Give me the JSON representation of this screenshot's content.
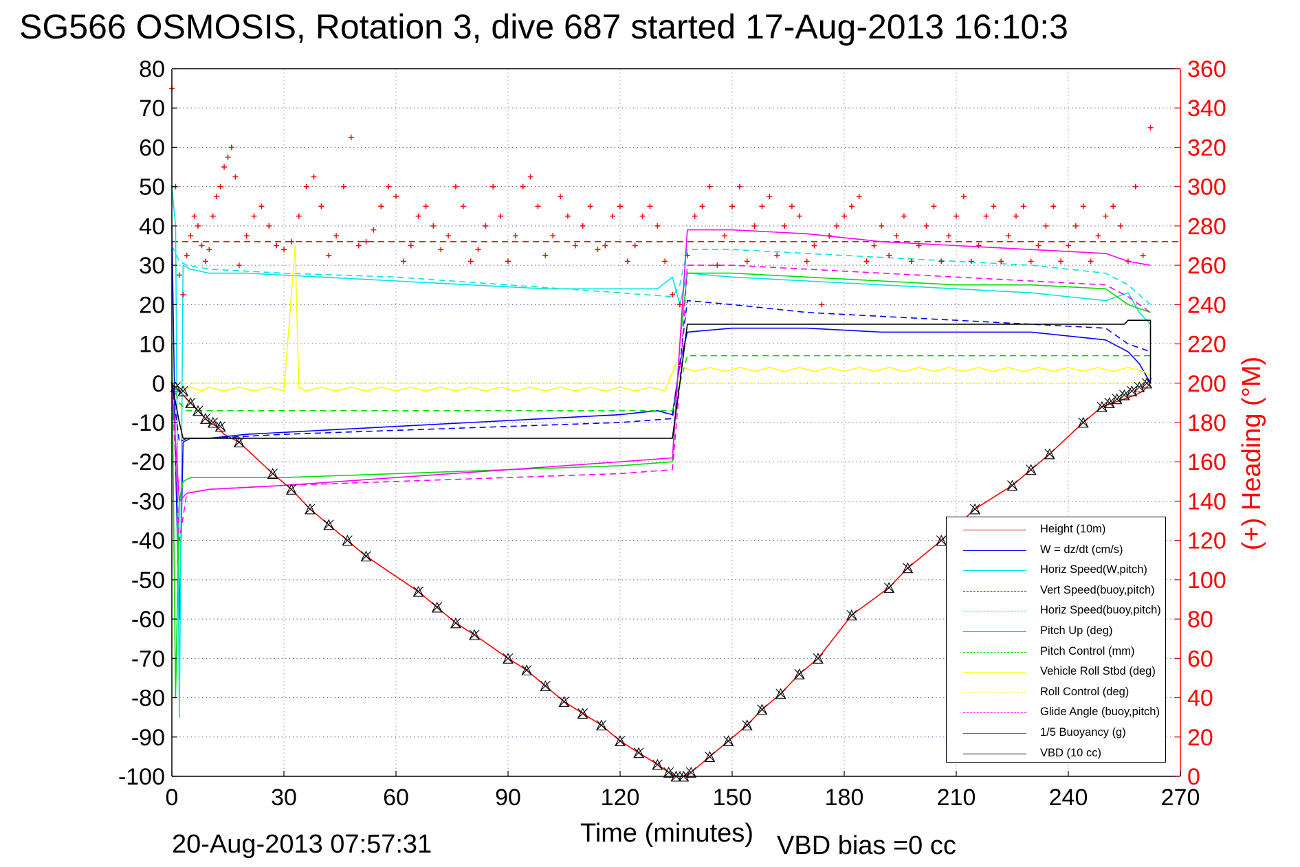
{
  "header": {
    "title": "SG566 OSMOSIS, Rotation 3, dive 687 started 17-Aug-2013 16:10:3"
  },
  "footer": {
    "timestamp": "20-Aug-2013 07:57:31",
    "vbd_bias": "VBD bias =0 cc"
  },
  "chart_data": {
    "type": "line",
    "xlabel": "Time (minutes)",
    "ylabel": "",
    "y2label": "(+) Heading (°M)",
    "xlim": [
      0,
      270
    ],
    "ylim": [
      -100,
      80
    ],
    "y2lim": [
      0,
      360
    ],
    "xticks": [
      0,
      30,
      60,
      90,
      120,
      150,
      180,
      210,
      240,
      270
    ],
    "yticks": [
      80,
      70,
      60,
      50,
      40,
      30,
      20,
      10,
      0,
      -10,
      -20,
      -30,
      -40,
      -50,
      -60,
      -70,
      -80,
      -90,
      -100
    ],
    "y2ticks": [
      360,
      340,
      320,
      300,
      280,
      260,
      240,
      220,
      200,
      180,
      160,
      140,
      120,
      100,
      80,
      60,
      40,
      20,
      0
    ],
    "grid": true,
    "legend_position": "bottom-right",
    "series": [
      {
        "name": "Height (10m)",
        "color": "#ff0000",
        "style": "solid",
        "x": [
          0,
          2,
          4,
          6,
          8,
          10,
          12,
          14,
          18,
          27,
          32,
          37,
          42,
          47,
          52,
          66,
          71,
          76,
          81,
          90,
          95,
          100,
          105,
          110,
          115,
          120,
          125,
          130,
          133,
          135,
          137,
          139,
          144,
          149,
          154,
          158,
          163,
          168,
          173,
          182,
          192,
          197,
          206,
          215,
          225,
          230,
          235,
          244,
          249,
          252,
          255,
          258,
          260,
          262
        ],
        "y": [
          -1,
          -2,
          -4,
          -6,
          -8,
          -10,
          -11,
          -13,
          -15,
          -23,
          -27,
          -32,
          -36,
          -40,
          -44,
          -53,
          -57,
          -61,
          -64,
          -70,
          -73,
          -77,
          -81,
          -84,
          -87,
          -91,
          -94,
          -97,
          -99,
          -100,
          -100,
          -99,
          -95,
          -91,
          -87,
          -83,
          -79,
          -74,
          -70,
          -59,
          -52,
          -47,
          -40,
          -32,
          -26,
          -22,
          -18,
          -10,
          -6,
          -5,
          -4,
          -3,
          -2,
          0
        ]
      },
      {
        "name": "W = dz/dt (cm/s)",
        "color": "#0000ff",
        "style": "solid",
        "x": [
          0,
          1,
          2,
          3,
          5,
          10,
          20,
          40,
          60,
          80,
          100,
          120,
          130,
          134,
          136,
          138,
          150,
          170,
          190,
          210,
          230,
          250,
          256,
          259,
          262
        ],
        "y": [
          40,
          -20,
          -60,
          -15,
          -14,
          -14,
          -13,
          -12,
          -11,
          -10,
          -9,
          -8,
          -7,
          -8,
          5,
          13,
          14,
          14,
          13,
          13,
          13,
          11,
          8,
          5,
          0
        ]
      },
      {
        "name": "Horiz Speed(W,pitch)",
        "color": "#00e5e5",
        "style": "solid",
        "x": [
          0,
          1,
          2,
          3,
          5,
          10,
          20,
          40,
          60,
          80,
          100,
          120,
          130,
          134,
          136,
          138,
          150,
          170,
          190,
          210,
          230,
          250,
          256,
          259,
          262
        ],
        "y": [
          50,
          40,
          -85,
          30,
          29,
          28,
          28,
          27,
          26,
          25,
          24,
          24,
          24,
          27,
          20,
          28,
          27,
          26,
          25,
          24,
          23,
          21,
          23,
          18,
          15
        ]
      },
      {
        "name": "Vert Speed(buoy,pitch)",
        "color": "#0000ff",
        "style": "dashed",
        "x": [
          0,
          2,
          4,
          10,
          30,
          60,
          90,
          120,
          134,
          136,
          138,
          150,
          170,
          190,
          210,
          230,
          250,
          256,
          262
        ],
        "y": [
          0,
          -15,
          -14,
          -14,
          -13,
          -12,
          -11,
          -10,
          -9,
          5,
          21,
          20,
          18,
          17,
          16,
          15,
          14,
          10,
          8
        ]
      },
      {
        "name": "Horiz Speed(buoy,pitch)",
        "color": "#00e5e5",
        "style": "dashed",
        "x": [
          0,
          2,
          4,
          10,
          30,
          60,
          90,
          120,
          134,
          136,
          138,
          150,
          170,
          190,
          210,
          230,
          250,
          256,
          262
        ],
        "y": [
          35,
          31,
          30,
          29,
          28,
          27,
          25,
          23,
          22,
          25,
          34,
          34,
          33,
          32,
          31,
          30,
          28,
          25,
          20
        ]
      },
      {
        "name": "Pitch Up (deg)",
        "color": "#00dd00",
        "style": "solid",
        "x": [
          0,
          1,
          2,
          3,
          5,
          10,
          30,
          60,
          90,
          120,
          134,
          136,
          138,
          150,
          170,
          190,
          210,
          230,
          250,
          256,
          262
        ],
        "y": [
          10,
          -80,
          -30,
          -25,
          -24,
          -24,
          -24,
          -23,
          -22,
          -21,
          -20,
          10,
          28,
          28,
          27,
          26,
          25,
          25,
          24,
          20,
          18
        ]
      },
      {
        "name": "Pitch Control (mm)",
        "color": "#00dd00",
        "style": "dashed",
        "x": [
          0,
          2,
          4,
          10,
          30,
          60,
          90,
          120,
          134,
          136,
          138,
          150,
          170,
          190,
          210,
          230,
          250,
          256,
          262
        ],
        "y": [
          0,
          -5,
          -7,
          -7,
          -7,
          -7,
          -7,
          -7,
          -7,
          0,
          7,
          7,
          7,
          7,
          7,
          7,
          7,
          7,
          7
        ]
      },
      {
        "name": "Vehicle Roll Stbd (deg)",
        "color": "#ffff00",
        "style": "solid",
        "x": [
          0,
          3,
          5,
          8,
          10,
          14,
          18,
          22,
          26,
          30,
          33,
          34,
          36,
          40,
          44,
          48,
          52,
          56,
          60,
          64,
          68,
          72,
          76,
          80,
          84,
          88,
          92,
          96,
          100,
          104,
          108,
          112,
          116,
          120,
          124,
          128,
          132,
          135,
          137,
          140,
          144,
          148,
          152,
          156,
          160,
          164,
          168,
          172,
          176,
          180,
          184,
          188,
          192,
          196,
          200,
          204,
          208,
          212,
          216,
          220,
          224,
          228,
          232,
          236,
          240,
          244,
          248,
          252,
          256,
          260,
          262
        ],
        "y": [
          0,
          -2,
          -1,
          -2,
          -1,
          -2,
          -1,
          -2,
          -1,
          -2,
          35,
          -1,
          -2,
          -1,
          -2,
          -1,
          -2,
          -1,
          -2,
          -1,
          -2,
          -1,
          -2,
          -1,
          -2,
          -1,
          -2,
          -1,
          -2,
          -1,
          -2,
          -1,
          -2,
          -1,
          -2,
          -1,
          -2,
          5,
          4,
          3,
          4,
          3,
          4,
          3,
          4,
          3,
          4,
          3,
          4,
          3,
          4,
          3,
          4,
          3,
          4,
          3,
          4,
          3,
          4,
          3,
          4,
          3,
          4,
          3,
          4,
          3,
          4,
          3,
          4,
          3,
          2
        ]
      },
      {
        "name": "Roll Control (deg)",
        "color": "#ffff00",
        "style": "dashed",
        "x": [
          0,
          10,
          30,
          60,
          90,
          120,
          134,
          136,
          150,
          180,
          210,
          240,
          262
        ],
        "y": [
          0,
          0,
          0,
          0,
          0,
          0,
          0,
          0,
          0,
          0,
          0,
          0,
          0
        ]
      },
      {
        "name": "Glide Angle (buoy,pitch)",
        "color": "#ff00ff",
        "style": "dashed",
        "x": [
          0,
          2,
          4,
          10,
          30,
          60,
          90,
          120,
          134,
          136,
          138,
          150,
          170,
          190,
          210,
          230,
          250,
          256,
          262
        ],
        "y": [
          0,
          -40,
          -28,
          -27,
          -26,
          -25,
          -24,
          -23,
          -22,
          0,
          30,
          30,
          29,
          28,
          27,
          26,
          25,
          22,
          18
        ]
      },
      {
        "name": "1/5 Buoyancy (g)",
        "color": "#ff00ff",
        "style": "solid",
        "x": [
          0,
          2,
          4,
          10,
          30,
          60,
          90,
          120,
          134,
          136,
          138,
          150,
          170,
          190,
          210,
          230,
          250,
          256,
          262
        ],
        "y": [
          0,
          -30,
          -28,
          -27,
          -26,
          -24,
          -22,
          -20,
          -19,
          10,
          39,
          39,
          38,
          36,
          35,
          34,
          33,
          31,
          30
        ]
      },
      {
        "name": "VBD (10 cc)",
        "color": "#000000",
        "style": "solid",
        "x": [
          0,
          1,
          2,
          3,
          5,
          134,
          136,
          138,
          255,
          256,
          262,
          262
        ],
        "y": [
          0,
          -5,
          -10,
          -14,
          -14,
          -14,
          0,
          15,
          15,
          16,
          16,
          0
        ]
      }
    ],
    "reference_lines": [
      {
        "axis": "y2",
        "value": 272,
        "color": "#ff0000",
        "style": "dashed"
      }
    ],
    "heading_series": {
      "axis": "y2",
      "color": "#ff0000",
      "marker": "+",
      "x": [
        0,
        1,
        2,
        3,
        4,
        5,
        6,
        7,
        8,
        9,
        10,
        11,
        12,
        13,
        14,
        15,
        16,
        17,
        18,
        20,
        22,
        24,
        26,
        28,
        30,
        32,
        34,
        36,
        38,
        40,
        42,
        44,
        46,
        48,
        50,
        52,
        54,
        56,
        58,
        60,
        62,
        64,
        66,
        68,
        70,
        72,
        74,
        76,
        78,
        80,
        82,
        84,
        86,
        88,
        90,
        92,
        94,
        96,
        98,
        100,
        102,
        104,
        106,
        108,
        110,
        112,
        114,
        116,
        118,
        120,
        122,
        124,
        126,
        128,
        130,
        132,
        134,
        136,
        138,
        140,
        142,
        144,
        146,
        148,
        150,
        152,
        154,
        156,
        158,
        160,
        162,
        164,
        166,
        168,
        170,
        172,
        174,
        176,
        178,
        180,
        182,
        184,
        186,
        188,
        190,
        192,
        194,
        196,
        198,
        200,
        202,
        204,
        206,
        208,
        210,
        212,
        214,
        216,
        218,
        220,
        222,
        224,
        226,
        228,
        230,
        232,
        234,
        236,
        238,
        240,
        242,
        244,
        246,
        248,
        250,
        252,
        254,
        256,
        258,
        260,
        262
      ],
      "y": [
        350,
        300,
        255,
        245,
        265,
        275,
        285,
        280,
        270,
        262,
        268,
        285,
        295,
        300,
        310,
        315,
        320,
        305,
        260,
        275,
        285,
        290,
        280,
        270,
        268,
        272,
        285,
        300,
        305,
        290,
        265,
        275,
        300,
        325,
        270,
        272,
        278,
        290,
        300,
        295,
        262,
        270,
        285,
        290,
        280,
        268,
        275,
        300,
        290,
        262,
        268,
        280,
        300,
        285,
        262,
        275,
        300,
        305,
        290,
        265,
        275,
        295,
        285,
        270,
        280,
        290,
        268,
        270,
        285,
        290,
        262,
        270,
        285,
        290,
        280,
        262,
        245,
        240,
        265,
        285,
        290,
        300,
        260,
        275,
        290,
        300,
        262,
        280,
        290,
        295,
        265,
        280,
        290,
        285,
        262,
        270,
        240,
        275,
        280,
        285,
        290,
        295,
        262,
        270,
        280,
        265,
        275,
        285,
        262,
        270,
        280,
        290,
        262,
        275,
        285,
        295,
        262,
        270,
        285,
        290,
        262,
        275,
        285,
        290,
        262,
        270,
        280,
        290,
        262,
        270,
        280,
        290,
        262,
        275,
        285,
        290,
        280,
        262,
        300,
        265,
        330
      ]
    },
    "depth_markers": {
      "color": "#000000",
      "marker": "triangle-x",
      "x": [
        1,
        3,
        5,
        7,
        9,
        11,
        13,
        18,
        27,
        32,
        37,
        42,
        47,
        52,
        66,
        71,
        76,
        81,
        90,
        95,
        100,
        105,
        110,
        115,
        120,
        125,
        130,
        133,
        135,
        137,
        139,
        144,
        149,
        154,
        158,
        163,
        168,
        173,
        182,
        192,
        197,
        206,
        215,
        225,
        230,
        235,
        244,
        249,
        251,
        253,
        255,
        257,
        259,
        261
      ],
      "y": [
        -1,
        -2,
        -5,
        -7,
        -9,
        -10,
        -11,
        -15,
        -23,
        -27,
        -32,
        -36,
        -40,
        -44,
        -53,
        -57,
        -61,
        -64,
        -70,
        -73,
        -77,
        -81,
        -84,
        -87,
        -91,
        -94,
        -97,
        -99,
        -100,
        -100,
        -99,
        -95,
        -91,
        -87,
        -83,
        -79,
        -74,
        -70,
        -59,
        -52,
        -47,
        -40,
        -32,
        -26,
        -22,
        -18,
        -10,
        -6,
        -5,
        -4,
        -3,
        -2,
        -1,
        0
      ]
    }
  }
}
